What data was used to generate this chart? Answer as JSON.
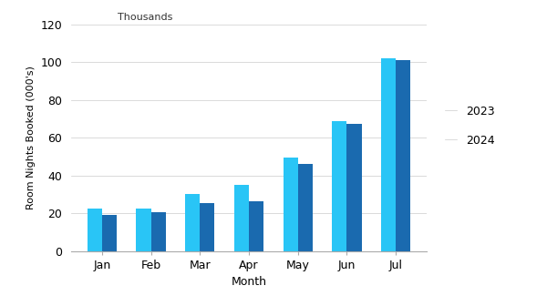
{
  "months_labels": [
    "Jan",
    "Feb",
    "Mar",
    "Apr",
    "May",
    "Jun",
    "Jul"
  ],
  "values_2023": [
    22.5,
    22.5,
    30,
    35,
    49.5,
    69,
    102
  ],
  "values_2024": [
    19,
    20.5,
    25.5,
    26.5,
    46,
    67.5,
    101
  ],
  "color_2023": "#29c5f6",
  "color_2024": "#1a6aaf",
  "ylabel": "Room Nights Booked (000's)",
  "xlabel": "Month",
  "ylim": [
    0,
    120
  ],
  "yticks": [
    0,
    20,
    40,
    60,
    80,
    100,
    120
  ],
  "thousands_label": "Thousands",
  "legend_labels": [
    "2023",
    "2024"
  ],
  "background_color": "#ffffff",
  "bar_width": 0.3
}
